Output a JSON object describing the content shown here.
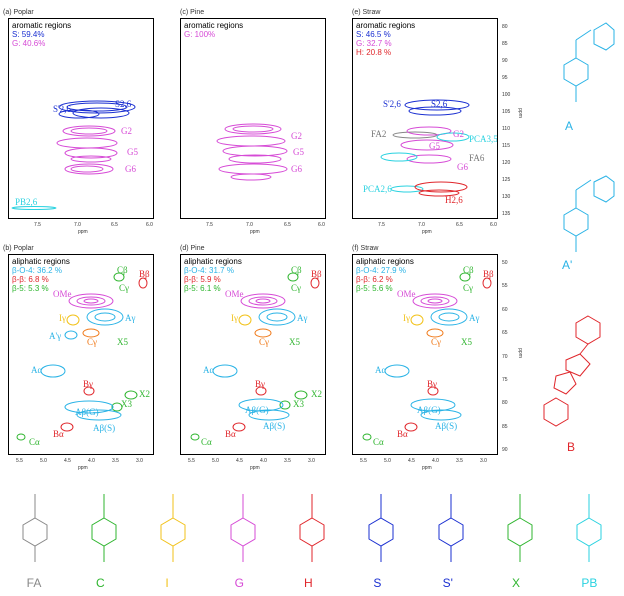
{
  "panels": {
    "a": {
      "label": "(a) Poplar",
      "region": "aromatic regions",
      "stats": [
        {
          "text": "S: 59.4%",
          "color": "#1a2fd1"
        },
        {
          "text": "G: 40.6%",
          "color": "#d64bd6"
        }
      ]
    },
    "c": {
      "label": "(c) Pine",
      "region": "aromatic regions",
      "stats": [
        {
          "text": "G: 100%",
          "color": "#d64bd6"
        }
      ]
    },
    "e": {
      "label": "(e) Straw",
      "region": "aromatic regions",
      "stats": [
        {
          "text": "S: 46.5 %",
          "color": "#1a2fd1"
        },
        {
          "text": "G: 32.7 %",
          "color": "#d64bd6"
        },
        {
          "text": "H: 20.8 %",
          "color": "#e0262b"
        }
      ]
    },
    "b": {
      "label": "(b) Poplar",
      "region": "aliphatic regions",
      "stats": [
        {
          "text": "β-O-4: 36.2 %",
          "color": "#2ab3e6"
        },
        {
          "text": "β-β: 6.8 %",
          "color": "#e0262b"
        },
        {
          "text": "β-5: 5.3 %",
          "color": "#2fb52f"
        }
      ]
    },
    "d": {
      "label": "(d) Pine",
      "region": "aliphatic regions",
      "stats": [
        {
          "text": "β-O-4: 31.7 %",
          "color": "#2ab3e6"
        },
        {
          "text": "β-β: 5.9 %",
          "color": "#e0262b"
        },
        {
          "text": "β-5: 6.1 %",
          "color": "#2fb52f"
        }
      ]
    },
    "f": {
      "label": "(f) Straw",
      "region": "aliphatic regions",
      "stats": [
        {
          "text": "β-O-4: 27.9 %",
          "color": "#2ab3e6"
        },
        {
          "text": "β-β: 6.2 %",
          "color": "#e0262b"
        },
        {
          "text": "β-5: 5.6 %",
          "color": "#2fb52f"
        }
      ]
    }
  },
  "axes": {
    "aromatic_x_ticks": [
      "7.5",
      "7.0",
      "6.5",
      "6.0"
    ],
    "aromatic_y_ticks": [
      "80",
      "85",
      "90",
      "95",
      "100",
      "105",
      "110",
      "115",
      "120",
      "125",
      "130",
      "135"
    ],
    "aliphatic_x_ticks": [
      "5.5",
      "5.0",
      "4.5",
      "4.0",
      "3.5",
      "3.0"
    ],
    "aliphatic_y_ticks": [
      "50",
      "55",
      "60",
      "65",
      "70",
      "75",
      "80",
      "85",
      "90"
    ],
    "ppm": "ppm"
  },
  "signals": {
    "aromatic": [
      "S'2,6",
      "S2,6",
      "G2",
      "G5",
      "G6",
      "PB2,6",
      "FA2",
      "PCA3,5",
      "FA6",
      "PCA2,6",
      "H2,6"
    ],
    "aliphatic": [
      "Cβ",
      "Bβ",
      "Cγ",
      "OMe",
      "Iγ",
      "Aγ",
      "A'γ",
      "Cγ",
      "X5",
      "Aα",
      "Bγ",
      "X2",
      "X3",
      "Aβ(G)",
      "Aβ(S)",
      "Bα",
      "Cα"
    ]
  },
  "side_structures": [
    "A",
    "A'",
    "B"
  ],
  "bottom_structures": [
    "FA",
    "C",
    "I",
    "G",
    "H",
    "S",
    "S'",
    "X",
    "PB"
  ],
  "colors": {
    "S": "#1a2fd1",
    "G": "#d64bd6",
    "H": "#e0262b",
    "A": "#2ab3e6",
    "B": "#e0262b",
    "C": "#2fb52f",
    "I": "#f2c21a",
    "X": "#2fb52f",
    "PB": "#2ad2e0",
    "FA": "#888888",
    "PCA": "#2ad2e0",
    "OMe": "#d64bd6",
    "orange": "#f07a1a"
  }
}
